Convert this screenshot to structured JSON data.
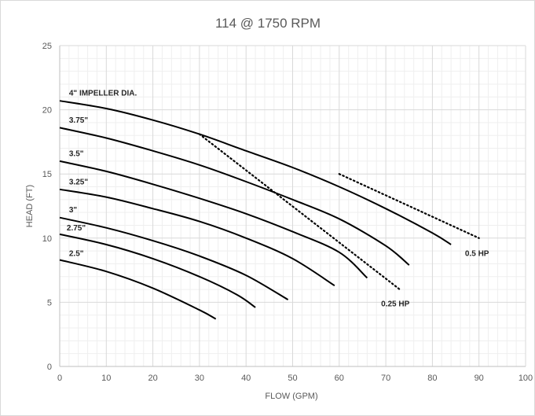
{
  "chart_data": {
    "type": "line",
    "title": "114 @ 1750 RPM",
    "xlabel": "FLOW (GPM)",
    "ylabel": "HEAD (FT)",
    "xlim": [
      0,
      100
    ],
    "ylim": [
      0,
      25
    ],
    "x_ticks": [
      "0",
      "10",
      "20",
      "30",
      "40",
      "50",
      "60",
      "70",
      "80",
      "90",
      "100"
    ],
    "y_ticks": [
      "0",
      "5",
      "10",
      "15",
      "20",
      "25"
    ],
    "grid": "major and minor",
    "colors": {
      "curve": "#000000",
      "grid_major": "#d9d9d9",
      "grid_minor": "#efefef",
      "text": "#595959"
    },
    "series": [
      {
        "name": "4\" IMPELLER DIA.",
        "style": "solid",
        "points": [
          [
            0,
            20.7
          ],
          [
            10,
            20.1
          ],
          [
            20,
            19.2
          ],
          [
            30,
            18.1
          ],
          [
            40,
            16.8
          ],
          [
            50,
            15.5
          ],
          [
            60,
            14.0
          ],
          [
            70,
            12.3
          ],
          [
            80,
            10.4
          ],
          [
            84,
            9.5
          ]
        ]
      },
      {
        "name": "3.75\"",
        "style": "solid",
        "points": [
          [
            0,
            18.6
          ],
          [
            10,
            17.8
          ],
          [
            20,
            16.8
          ],
          [
            30,
            15.7
          ],
          [
            40,
            14.4
          ],
          [
            50,
            13.0
          ],
          [
            60,
            11.5
          ],
          [
            70,
            9.4
          ],
          [
            75,
            7.9
          ]
        ]
      },
      {
        "name": "3.5\"",
        "style": "solid",
        "points": [
          [
            0,
            16.0
          ],
          [
            10,
            15.2
          ],
          [
            20,
            14.2
          ],
          [
            30,
            13.1
          ],
          [
            40,
            11.9
          ],
          [
            50,
            10.5
          ],
          [
            60,
            8.9
          ],
          [
            66,
            6.9
          ]
        ]
      },
      {
        "name": "3.25\"",
        "style": "solid",
        "points": [
          [
            0,
            13.8
          ],
          [
            10,
            13.2
          ],
          [
            20,
            12.3
          ],
          [
            30,
            11.3
          ],
          [
            40,
            10.0
          ],
          [
            50,
            8.4
          ],
          [
            59,
            6.3
          ]
        ]
      },
      {
        "name": "3\"",
        "style": "solid",
        "points": [
          [
            0,
            11.6
          ],
          [
            10,
            10.8
          ],
          [
            20,
            9.8
          ],
          [
            30,
            8.6
          ],
          [
            40,
            7.1
          ],
          [
            49,
            5.2
          ]
        ]
      },
      {
        "name": "2.75\"",
        "style": "solid",
        "points": [
          [
            0,
            10.3
          ],
          [
            10,
            9.5
          ],
          [
            20,
            8.4
          ],
          [
            30,
            7.0
          ],
          [
            38,
            5.6
          ],
          [
            42,
            4.6
          ]
        ]
      },
      {
        "name": "2.5\"",
        "style": "solid",
        "points": [
          [
            0,
            8.3
          ],
          [
            10,
            7.4
          ],
          [
            20,
            6.1
          ],
          [
            30,
            4.4
          ],
          [
            33.5,
            3.7
          ]
        ]
      },
      {
        "name": "0.25 HP",
        "style": "dotted",
        "points": [
          [
            30,
            18.1
          ],
          [
            73,
            6.0
          ]
        ]
      },
      {
        "name": "0.5 HP",
        "style": "dotted",
        "points": [
          [
            60,
            15.0
          ],
          [
            90,
            10.0
          ]
        ]
      }
    ],
    "labels": [
      {
        "text": "4\" IMPELLER DIA.",
        "x": 2,
        "y": 21.1
      },
      {
        "text": "3.75\"",
        "x": 2,
        "y": 19.0
      },
      {
        "text": "3.5\"",
        "x": 2,
        "y": 16.4
      },
      {
        "text": "3.25\"",
        "x": 2,
        "y": 14.2
      },
      {
        "text": "3\"",
        "x": 2,
        "y": 12.0
      },
      {
        "text": "2.75\"",
        "x": 1.5,
        "y": 10.6
      },
      {
        "text": "2.5\"",
        "x": 2,
        "y": 8.6
      },
      {
        "text": "0.25 HP",
        "x": 69,
        "y": 4.7
      },
      {
        "text": "0.5 HP",
        "x": 87,
        "y": 8.6
      }
    ]
  }
}
